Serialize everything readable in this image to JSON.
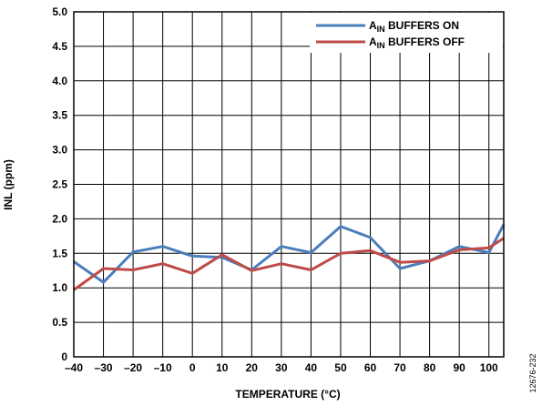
{
  "chart_data": {
    "type": "line",
    "title": "",
    "xlabel": "TEMPERATURE (°C)",
    "ylabel": "INL (ppm)",
    "xlim": [
      -40,
      105
    ],
    "ylim": [
      0,
      5.0
    ],
    "xticks": [
      -40,
      -30,
      -20,
      -10,
      0,
      10,
      20,
      30,
      40,
      50,
      60,
      70,
      80,
      90,
      100
    ],
    "xtick_labels": [
      "–40",
      "–30",
      "–20",
      "–10",
      "0",
      "10",
      "20",
      "30",
      "40",
      "50",
      "60",
      "70",
      "80",
      "90",
      "100"
    ],
    "yticks": [
      0,
      0.5,
      1.0,
      1.5,
      2.0,
      2.5,
      3.0,
      3.5,
      4.0,
      4.5,
      5.0
    ],
    "ytick_labels": [
      "0",
      "0.5",
      "1.0",
      "1.5",
      "2.0",
      "2.5",
      "3.0",
      "3.5",
      "4.0",
      "4.5",
      "5.0"
    ],
    "grid": true,
    "legend_position": "top-right",
    "x": [
      -40,
      -30,
      -20,
      -10,
      0,
      10,
      20,
      30,
      40,
      50,
      60,
      70,
      80,
      90,
      100,
      105
    ],
    "series": [
      {
        "legend_main": "A",
        "legend_sub": "IN",
        "legend_rest": " BUFFERS ON",
        "color": "#4a7ebb",
        "values": [
          1.38,
          1.08,
          1.52,
          1.6,
          1.46,
          1.44,
          1.26,
          1.6,
          1.51,
          1.89,
          1.73,
          1.28,
          1.39,
          1.6,
          1.51,
          1.92
        ]
      },
      {
        "legend_main": "A",
        "legend_sub": "IN",
        "legend_rest": " BUFFERS OFF",
        "color": "#be4b48",
        "values": [
          0.97,
          1.28,
          1.26,
          1.35,
          1.21,
          1.48,
          1.25,
          1.35,
          1.26,
          1.5,
          1.54,
          1.37,
          1.39,
          1.55,
          1.58,
          1.72
        ]
      }
    ]
  },
  "figure_code": "12676-232"
}
